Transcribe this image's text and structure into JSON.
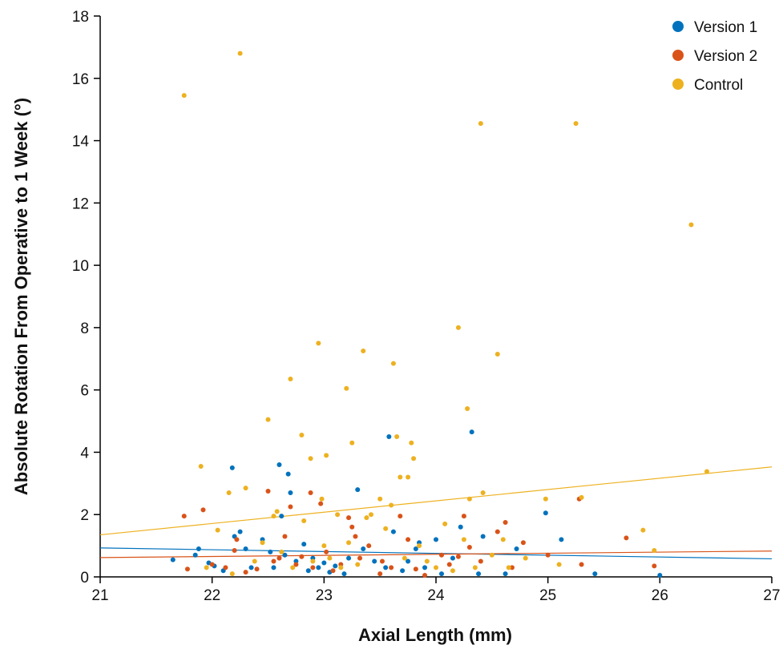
{
  "chart_data": {
    "type": "scatter",
    "title": "",
    "xlabel": "Axial Length (mm)",
    "ylabel": "Absolute Rotation From Operative to 1 Week (°)",
    "xlim": [
      21,
      27
    ],
    "ylim": [
      0,
      18
    ],
    "xticks": [
      "21",
      "22",
      "23",
      "24",
      "25",
      "26",
      "27"
    ],
    "yticks": [
      "0",
      "2",
      "4",
      "6",
      "8",
      "10",
      "12",
      "14",
      "16",
      "18"
    ],
    "grid": false,
    "legend_position": "top-right",
    "series": [
      {
        "name": "Version 1",
        "color": "#0072BD",
        "trend": [
          [
            21,
            0.93
          ],
          [
            27,
            0.58
          ]
        ],
        "points": [
          [
            21.65,
            0.55
          ],
          [
            21.85,
            0.7
          ],
          [
            21.88,
            0.9
          ],
          [
            21.97,
            0.45
          ],
          [
            22.02,
            0.35
          ],
          [
            22.1,
            0.2
          ],
          [
            22.18,
            3.5
          ],
          [
            22.2,
            1.3
          ],
          [
            22.25,
            1.45
          ],
          [
            22.3,
            0.9
          ],
          [
            22.35,
            0.3
          ],
          [
            22.45,
            1.2
          ],
          [
            22.52,
            0.8
          ],
          [
            22.55,
            0.3
          ],
          [
            22.6,
            3.6
          ],
          [
            22.62,
            1.95
          ],
          [
            22.65,
            0.7
          ],
          [
            22.68,
            3.3
          ],
          [
            22.7,
            2.7
          ],
          [
            22.75,
            0.5
          ],
          [
            22.82,
            1.05
          ],
          [
            22.86,
            0.2
          ],
          [
            22.9,
            0.6
          ],
          [
            22.95,
            0.3
          ],
          [
            23.0,
            0.45
          ],
          [
            23.05,
            0.15
          ],
          [
            23.1,
            0.35
          ],
          [
            23.18,
            0.1
          ],
          [
            23.22,
            0.6
          ],
          [
            23.3,
            2.8
          ],
          [
            23.35,
            0.9
          ],
          [
            23.45,
            0.5
          ],
          [
            23.55,
            0.3
          ],
          [
            23.58,
            4.5
          ],
          [
            23.62,
            1.45
          ],
          [
            23.7,
            0.2
          ],
          [
            23.75,
            0.5
          ],
          [
            23.82,
            0.9
          ],
          [
            23.85,
            1.1
          ],
          [
            23.9,
            0.3
          ],
          [
            24.0,
            1.2
          ],
          [
            24.05,
            0.1
          ],
          [
            24.15,
            0.6
          ],
          [
            24.22,
            1.6
          ],
          [
            24.32,
            4.65
          ],
          [
            24.38,
            0.1
          ],
          [
            24.42,
            1.3
          ],
          [
            24.62,
            0.1
          ],
          [
            24.72,
            0.9
          ],
          [
            24.98,
            2.05
          ],
          [
            25.12,
            1.2
          ],
          [
            25.42,
            0.1
          ],
          [
            26.0,
            0.05
          ]
        ]
      },
      {
        "name": "Version 2",
        "color": "#D95319",
        "trend": [
          [
            21,
            0.62
          ],
          [
            27,
            0.83
          ]
        ],
        "points": [
          [
            21.75,
            1.95
          ],
          [
            21.78,
            0.25
          ],
          [
            21.92,
            2.15
          ],
          [
            22.0,
            0.4
          ],
          [
            22.12,
            0.3
          ],
          [
            22.2,
            0.85
          ],
          [
            22.22,
            1.2
          ],
          [
            22.3,
            0.15
          ],
          [
            22.4,
            0.25
          ],
          [
            22.5,
            2.75
          ],
          [
            22.55,
            0.5
          ],
          [
            22.6,
            0.6
          ],
          [
            22.65,
            1.3
          ],
          [
            22.7,
            2.25
          ],
          [
            22.75,
            0.4
          ],
          [
            22.8,
            0.65
          ],
          [
            22.88,
            2.7
          ],
          [
            22.9,
            0.3
          ],
          [
            22.97,
            2.35
          ],
          [
            23.02,
            0.8
          ],
          [
            23.08,
            0.2
          ],
          [
            23.15,
            0.4
          ],
          [
            23.22,
            1.9
          ],
          [
            23.25,
            1.6
          ],
          [
            23.28,
            1.3
          ],
          [
            23.32,
            0.6
          ],
          [
            23.4,
            1.0
          ],
          [
            23.5,
            0.1
          ],
          [
            23.52,
            0.5
          ],
          [
            23.6,
            0.3
          ],
          [
            23.68,
            1.95
          ],
          [
            23.75,
            1.2
          ],
          [
            23.82,
            0.25
          ],
          [
            23.9,
            0.05
          ],
          [
            24.05,
            0.7
          ],
          [
            24.12,
            0.4
          ],
          [
            24.2,
            0.65
          ],
          [
            24.25,
            1.95
          ],
          [
            24.3,
            0.95
          ],
          [
            24.4,
            0.5
          ],
          [
            24.55,
            1.45
          ],
          [
            24.62,
            1.75
          ],
          [
            24.68,
            0.3
          ],
          [
            24.78,
            1.1
          ],
          [
            25.0,
            0.7
          ],
          [
            25.28,
            2.5
          ],
          [
            25.3,
            0.4
          ],
          [
            25.7,
            1.25
          ],
          [
            25.95,
            0.35
          ]
        ]
      },
      {
        "name": "Control",
        "color": "#EDB120",
        "trend": [
          [
            21,
            1.35
          ],
          [
            27,
            3.53
          ]
        ],
        "points": [
          [
            21.75,
            15.45
          ],
          [
            21.9,
            3.55
          ],
          [
            21.95,
            0.3
          ],
          [
            22.05,
            1.5
          ],
          [
            22.15,
            2.7
          ],
          [
            22.18,
            0.1
          ],
          [
            22.25,
            16.8
          ],
          [
            22.3,
            2.85
          ],
          [
            22.38,
            0.5
          ],
          [
            22.45,
            1.1
          ],
          [
            22.5,
            5.05
          ],
          [
            22.55,
            1.95
          ],
          [
            22.58,
            2.1
          ],
          [
            22.62,
            0.8
          ],
          [
            22.7,
            6.35
          ],
          [
            22.72,
            0.3
          ],
          [
            22.8,
            4.55
          ],
          [
            22.82,
            1.8
          ],
          [
            22.88,
            3.8
          ],
          [
            22.9,
            0.5
          ],
          [
            22.95,
            7.5
          ],
          [
            22.98,
            2.5
          ],
          [
            23.0,
            1.0
          ],
          [
            23.02,
            3.9
          ],
          [
            23.05,
            0.6
          ],
          [
            23.12,
            2.0
          ],
          [
            23.15,
            0.3
          ],
          [
            23.2,
            6.05
          ],
          [
            23.22,
            1.1
          ],
          [
            23.25,
            4.3
          ],
          [
            23.3,
            0.4
          ],
          [
            23.35,
            7.25
          ],
          [
            23.38,
            1.9
          ],
          [
            23.42,
            2.0
          ],
          [
            23.5,
            2.5
          ],
          [
            23.55,
            1.55
          ],
          [
            23.6,
            2.3
          ],
          [
            23.62,
            6.85
          ],
          [
            23.65,
            4.5
          ],
          [
            23.68,
            3.2
          ],
          [
            23.72,
            0.6
          ],
          [
            23.75,
            3.2
          ],
          [
            23.78,
            4.3
          ],
          [
            23.8,
            3.8
          ],
          [
            23.85,
            1.0
          ],
          [
            23.92,
            0.5
          ],
          [
            24.0,
            0.3
          ],
          [
            24.08,
            1.7
          ],
          [
            24.15,
            0.2
          ],
          [
            24.2,
            8.0
          ],
          [
            24.25,
            1.2
          ],
          [
            24.28,
            5.4
          ],
          [
            24.3,
            2.5
          ],
          [
            24.35,
            0.3
          ],
          [
            24.4,
            14.55
          ],
          [
            24.42,
            2.7
          ],
          [
            24.5,
            0.7
          ],
          [
            24.55,
            7.15
          ],
          [
            24.6,
            1.2
          ],
          [
            24.65,
            0.3
          ],
          [
            24.8,
            0.6
          ],
          [
            24.98,
            2.5
          ],
          [
            25.1,
            0.4
          ],
          [
            25.25,
            14.55
          ],
          [
            25.3,
            2.55
          ],
          [
            25.85,
            1.5
          ],
          [
            25.95,
            0.85
          ],
          [
            26.28,
            11.3
          ],
          [
            26.42,
            3.38
          ]
        ]
      }
    ]
  }
}
